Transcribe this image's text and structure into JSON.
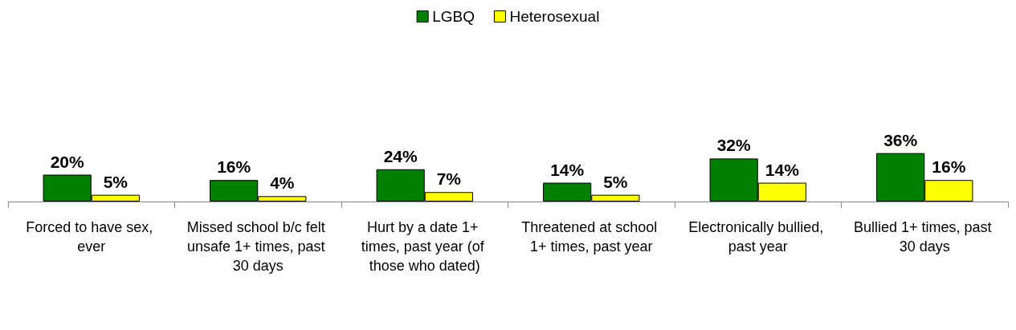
{
  "chart_data": {
    "type": "bar",
    "categories": [
      "Forced to have sex, ever",
      "Missed school b/c felt unsafe 1+ times, past 30 days",
      "Hurt by a date 1+ times, past year (of those who dated)",
      "Threatened at school 1+ times, past year",
      "Electronically bullied, past year",
      "Bullied 1+ times, past 30 days"
    ],
    "series": [
      {
        "name": "LGBQ",
        "color": "#008000",
        "values": [
          20,
          16,
          24,
          14,
          32,
          36
        ],
        "value_labels": [
          "20%",
          "16%",
          "24%",
          "14%",
          "32%",
          "36%"
        ]
      },
      {
        "name": "Heterosexual",
        "color": "#ffff00",
        "values": [
          5,
          4,
          7,
          5,
          14,
          16
        ],
        "value_labels": [
          "5%",
          "4%",
          "7%",
          "5%",
          "14%",
          "16%"
        ]
      }
    ],
    "tick_labels": "x",
    "grid": false,
    "legend": "top"
  }
}
